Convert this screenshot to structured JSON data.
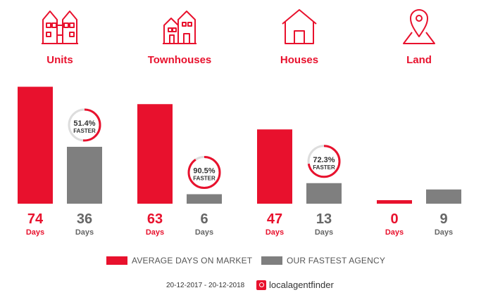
{
  "colors": {
    "accent": "#e8112d",
    "agency": "#7f7f7f",
    "text_gray": "#666666",
    "ring_gray": "#dddddd"
  },
  "chart_data": {
    "type": "bar",
    "categories": [
      "Units",
      "Townhouses",
      "Houses",
      "Land"
    ],
    "category_icons": [
      "units-icon",
      "townhouses-icon",
      "houses-icon",
      "land-icon"
    ],
    "series": [
      {
        "name": "AVERAGE DAYS ON MARKET",
        "values": [
          74,
          63,
          47,
          0
        ]
      },
      {
        "name": "OUR FASTEST AGENCY",
        "values": [
          36,
          6,
          13,
          9
        ]
      }
    ],
    "value_unit": "Days",
    "faster": [
      {
        "percent": 51.4,
        "text": "51.4%",
        "label": "FASTER"
      },
      {
        "percent": 90.5,
        "text": "90.5%",
        "label": "FASTER"
      },
      {
        "percent": 72.3,
        "text": "72.3%",
        "label": "FASTER"
      },
      null
    ],
    "ylim": [
      0,
      80
    ],
    "grid": false,
    "legend_position": "bottom"
  },
  "footer": {
    "period": "20-12-2017 - 20-12-2018",
    "brand_name": "localagentfinder",
    "brand_icon": "localagentfinder-logo-icon"
  }
}
